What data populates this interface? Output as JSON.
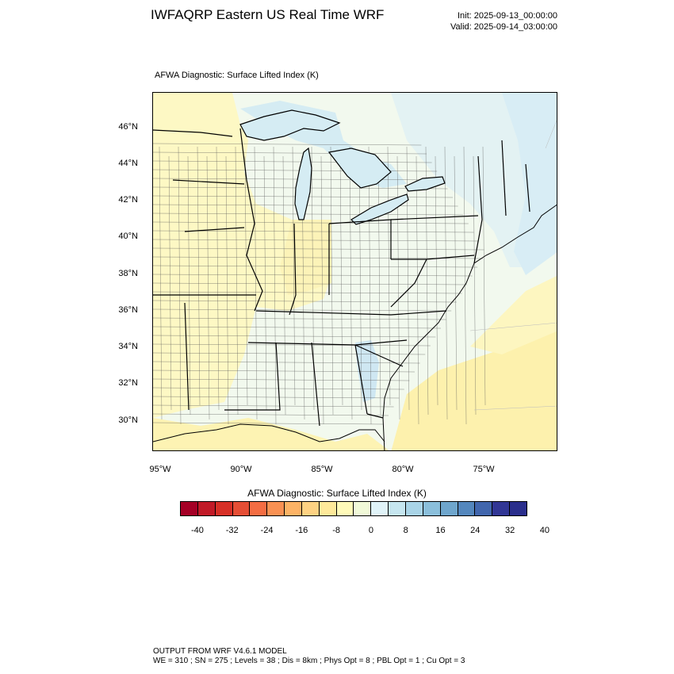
{
  "header": {
    "title": "IWFAQRP Eastern US Real Time WRF",
    "init": "Init: 2025-09-13_00:00:00",
    "valid": "Valid: 2025-09-14_03:00:00"
  },
  "map": {
    "subtitle": "AFWA Diagnostic: Surface Lifted Index   (K)",
    "lat_labels": [
      "46°N",
      "44°N",
      "42°N",
      "40°N",
      "38°N",
      "36°N",
      "34°N",
      "32°N",
      "30°N"
    ],
    "lon_labels": [
      "95°W",
      "90°W",
      "85°W",
      "80°W",
      "75°W"
    ],
    "colors": {
      "ocean_near_zero": "#f2f9ee",
      "slightly_stable": "#e6f5f1",
      "stable_blue": "#d5ecf3",
      "slightly_unstable": "#fdf8c4",
      "unstable_yellow": "#fdf1ad"
    }
  },
  "colorbar": {
    "title": "AFWA Diagnostic: Surface Lifted Index  (K)",
    "labels": [
      "-40",
      "-32",
      "-24",
      "-16",
      "-8",
      "0",
      "8",
      "16",
      "24",
      "32",
      "40"
    ],
    "colors": [
      "#a50026",
      "#c11a27",
      "#d73027",
      "#e54e35",
      "#f46d43",
      "#f99153",
      "#fdb366",
      "#fed283",
      "#fee99a",
      "#fffab9",
      "#f1f9d8",
      "#e0f3f8",
      "#c6e6f0",
      "#a9d4e7",
      "#8bbfdb",
      "#6fa6cd",
      "#5487bd",
      "#4166ad",
      "#313695",
      "#2a2e8c"
    ]
  },
  "footer": {
    "line1": "OUTPUT FROM WRF V4.6.1 MODEL",
    "line2": "WE = 310 ; SN = 275 ; Levels = 38 ; Dis = 8km ; Phys Opt = 8 ; PBL Opt = 1 ; Cu Opt = 3"
  }
}
